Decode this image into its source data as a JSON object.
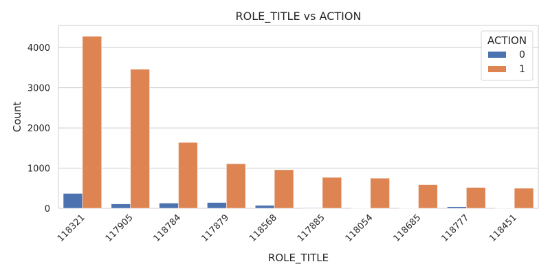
{
  "chart_data": {
    "type": "bar",
    "title": "ROLE_TITLE vs ACTION",
    "xlabel": "ROLE_TITLE",
    "ylabel": "Count",
    "categories": [
      "118321",
      "117905",
      "118784",
      "117879",
      "118568",
      "117885",
      "118054",
      "118685",
      "118777",
      "118451"
    ],
    "series": [
      {
        "name": "0",
        "color": "#4c72b0",
        "values": [
          370,
          110,
          130,
          145,
          75,
          15,
          10,
          5,
          40,
          5
        ]
      },
      {
        "name": "1",
        "color": "#dd8452",
        "values": [
          4280,
          3460,
          1640,
          1110,
          960,
          770,
          750,
          590,
          520,
          500
        ]
      }
    ],
    "ylim": [
      0,
      4550
    ],
    "yticks": [
      0,
      1000,
      2000,
      3000,
      4000
    ],
    "grid": true,
    "legend": {
      "title": "ACTION",
      "placement": "top-right"
    }
  }
}
